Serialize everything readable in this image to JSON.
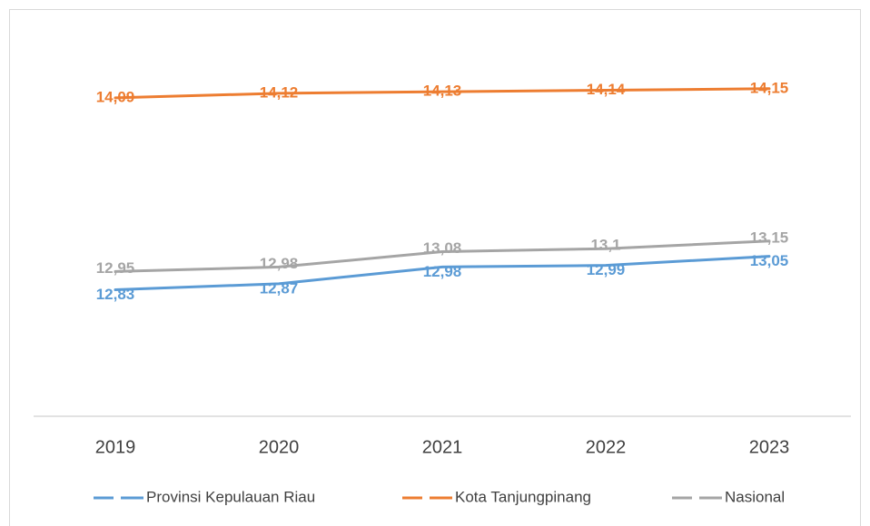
{
  "chart_data": {
    "type": "line",
    "categories": [
      "2019",
      "2020",
      "2021",
      "2022",
      "2023"
    ],
    "series": [
      {
        "name": "Provinsi Kepulauan Riau",
        "color": "#5b9bd5",
        "values": [
          12.83,
          12.87,
          12.98,
          12.99,
          13.05
        ],
        "value_labels": [
          "12,83",
          "12,87",
          "12,98",
          "12,99",
          "13,05"
        ]
      },
      {
        "name": "Kota Tanjungpinang",
        "color": "#ed7d31",
        "values": [
          14.09,
          14.12,
          14.13,
          14.14,
          14.15
        ],
        "value_labels": [
          "14,09",
          "14,12",
          "14,13",
          "14,14",
          "14,15"
        ]
      },
      {
        "name": "Nasional",
        "color": "#a5a5a5",
        "values": [
          12.95,
          12.98,
          13.08,
          13.1,
          13.15
        ],
        "value_labels": [
          "12,95",
          "12,98",
          "13,08",
          "13,1",
          "13,15"
        ]
      }
    ],
    "ylim": [
      12,
      14.5
    ]
  }
}
